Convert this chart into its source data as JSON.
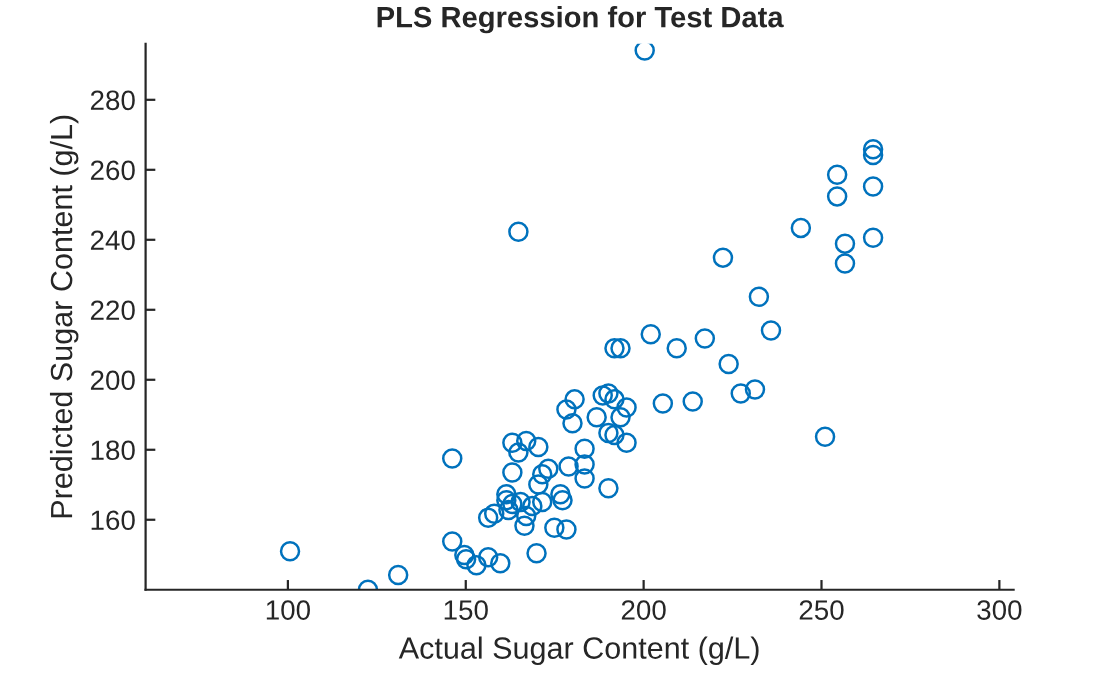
{
  "chart_data": {
    "type": "scatter",
    "title": "PLS Regression for Test Data",
    "xlabel": "Actual Sugar Content (g/L)",
    "ylabel": "Predicted Sugar Content (g/L)",
    "xlim": [
      60,
      304
    ],
    "ylim": [
      140,
      296
    ],
    "xticks": [
      100,
      150,
      200,
      250,
      300
    ],
    "yticks": [
      160,
      180,
      200,
      220,
      240,
      260,
      280
    ],
    "grid": false,
    "legend": false,
    "marker": "circle",
    "series": [
      {
        "color": "#0072bd",
        "x": [
          100.6,
          122.5,
          131.0,
          146.2,
          146.2,
          149.6,
          150.1,
          153.0,
          156.3,
          159.7,
          169.9,
          156.3,
          158.0,
          163.1,
          161.4,
          161.4,
          163.1,
          162.0,
          165.4,
          167.0,
          166.5,
          168.7,
          170.4,
          171.5,
          171.5,
          173.2,
          174.9,
          178.3,
          176.6,
          177.2,
          163.1,
          164.8,
          167.0,
          170.4,
          178.3,
          180.6,
          180.0,
          178.9,
          183.4,
          183.4,
          183.4,
          186.8,
          188.5,
          190.1,
          191.8,
          195.2,
          205.4,
          213.8,
          227.3,
          231.3,
          193.5,
          190.1,
          191.8,
          195.2,
          190.1,
          251.0,
          202.0,
          191.8,
          193.5,
          209.3,
          217.2,
          235.8,
          223.9,
          200.3,
          264.5,
          264.5,
          254.4,
          264.5,
          254.4,
          244.2,
          256.6,
          264.5,
          256.6,
          222.3,
          232.4,
          164.8
        ],
        "values": [
          151.0,
          140.0,
          144.2,
          177.5,
          153.8,
          149.9,
          148.7,
          147.0,
          149.3,
          147.6,
          150.4,
          160.6,
          161.7,
          173.5,
          167.3,
          165.6,
          164.5,
          162.8,
          165.1,
          161.1,
          158.3,
          163.9,
          170.1,
          165.1,
          173.0,
          174.6,
          157.7,
          157.2,
          167.3,
          165.6,
          182.0,
          179.2,
          182.5,
          180.8,
          191.5,
          194.4,
          187.6,
          175.2,
          180.3,
          175.8,
          171.8,
          189.3,
          195.5,
          196.1,
          194.4,
          192.1,
          193.2,
          193.8,
          196.1,
          197.2,
          189.3,
          184.8,
          184.2,
          182.0,
          169.0,
          183.7,
          213.0,
          209.0,
          209.0,
          209.0,
          211.8,
          214.1,
          204.5,
          294.1,
          265.9,
          264.2,
          258.6,
          255.2,
          252.4,
          243.4,
          238.9,
          240.6,
          233.2,
          234.9,
          223.7,
          242.3
        ]
      }
    ]
  }
}
